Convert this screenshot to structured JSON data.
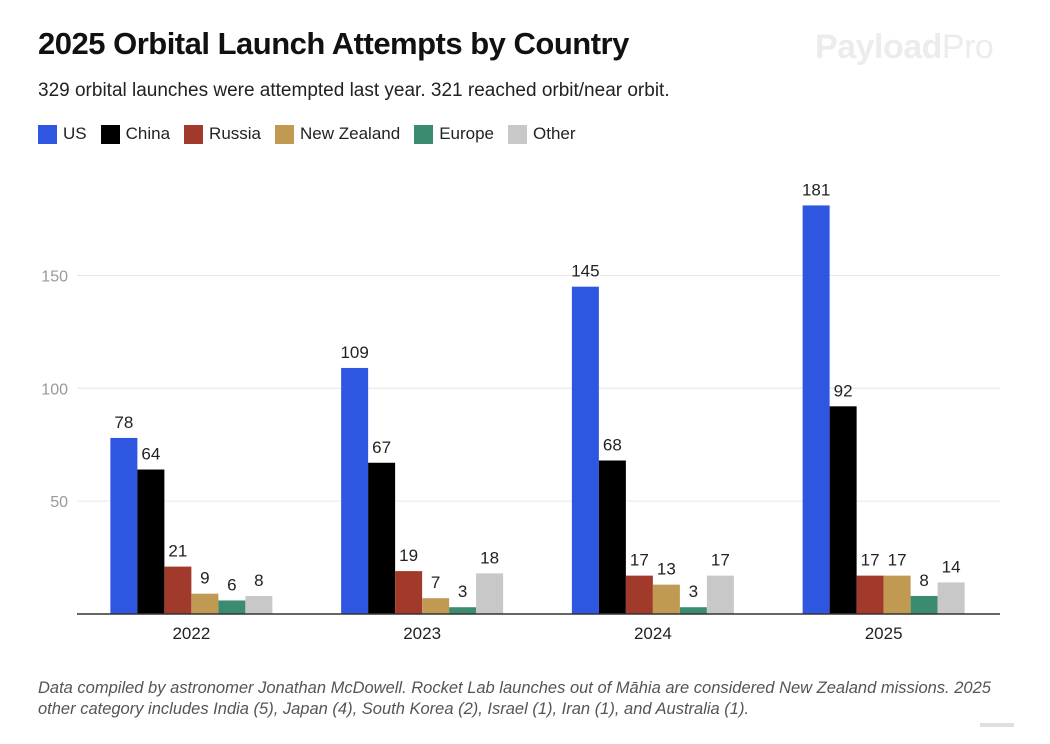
{
  "header": {
    "title": "2025 Orbital Launch Attempts by Country",
    "subtitle": "329 orbital launches were attempted last year. 321 reached orbit/near orbit.",
    "logo": "PayloadPro"
  },
  "footer": {
    "note": "Data compiled by astronomer Jonathan McDowell. Rocket Lab launches out of Māhia are considered New Zealand missions. 2025 other category includes India (5), Japan (4), South Korea (2), Israel (1), Iran (1), and Australia (1)."
  },
  "chart_data": {
    "type": "bar",
    "title": "2025 Orbital Launch Attempts by Country",
    "categories": [
      "2022",
      "2023",
      "2024",
      "2025"
    ],
    "series": [
      {
        "name": "US",
        "color": "#2F56E0",
        "values": [
          78,
          109,
          145,
          181
        ]
      },
      {
        "name": "China",
        "color": "#000000",
        "values": [
          64,
          67,
          68,
          92
        ]
      },
      {
        "name": "Russia",
        "color": "#A23A2B",
        "values": [
          21,
          19,
          17,
          17
        ]
      },
      {
        "name": "New Zealand",
        "color": "#C09A52",
        "values": [
          9,
          7,
          13,
          17
        ]
      },
      {
        "name": "Europe",
        "color": "#3A8B70",
        "values": [
          6,
          3,
          3,
          8
        ]
      },
      {
        "name": "Other",
        "color": "#C8C8C8",
        "values": [
          8,
          18,
          17,
          14
        ]
      }
    ],
    "yticks": [
      50,
      100,
      150
    ],
    "ylim": [
      0,
      272
    ],
    "grid": true,
    "legend": "top-left",
    "data_labels": true
  }
}
